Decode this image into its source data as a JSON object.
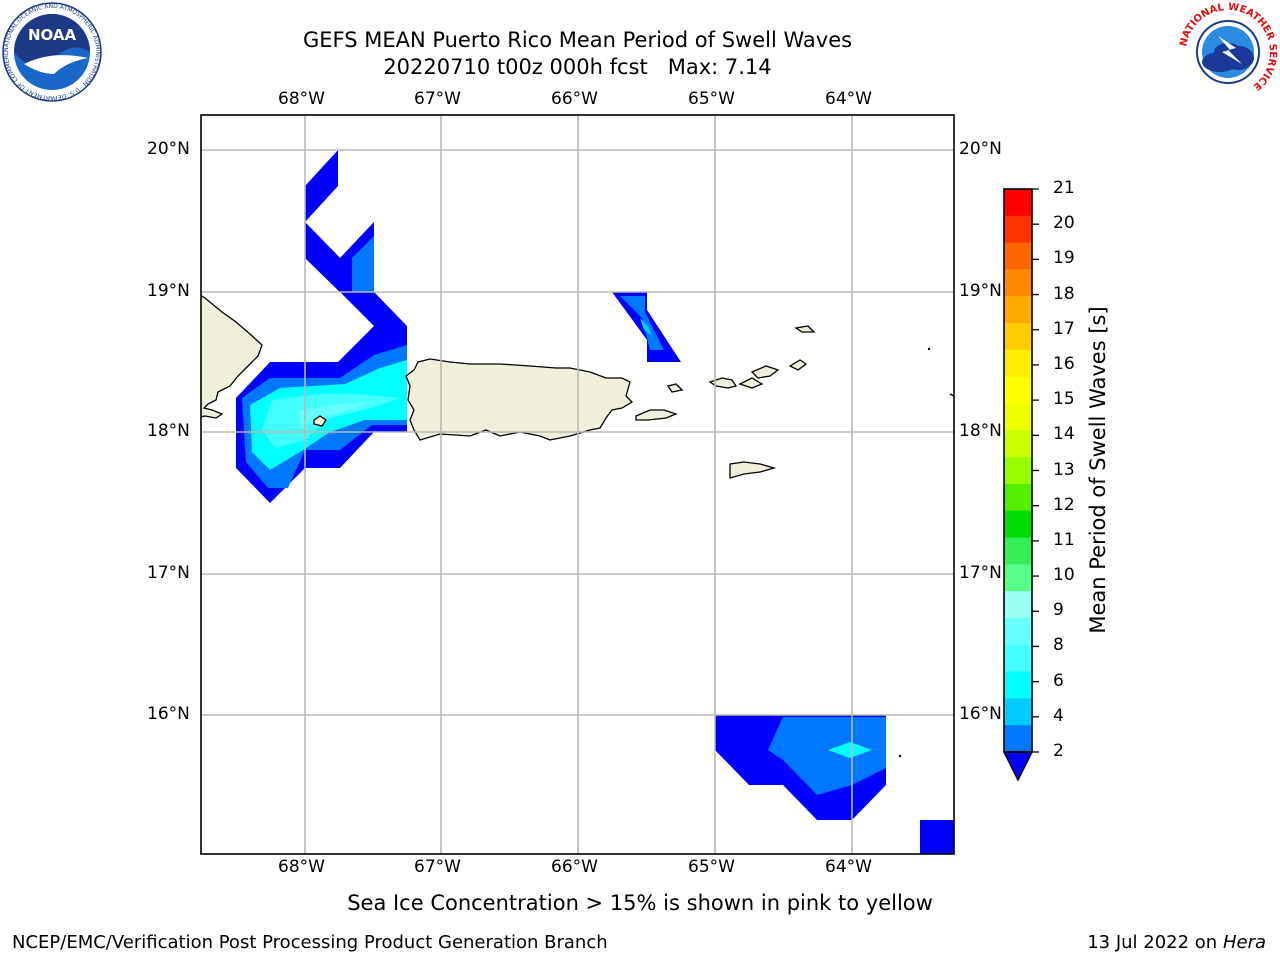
{
  "header": {
    "title_line1": "GEFS MEAN Puerto Rico Mean Period of Swell Waves",
    "title_line2": "20220710 t00z 000h fcst   Max: 7.14"
  },
  "logos": {
    "left": {
      "name": "noaa-logo",
      "text": "NOAA",
      "ring_text": "NATIONAL OCEANIC AND ATMOSPHERIC ADMINISTRATION · U.S. DEPARTMENT OF COMMERCE"
    },
    "right": {
      "name": "nws-logo",
      "ring_text": "NATIONAL WEATHER SERVICE"
    }
  },
  "map": {
    "lon_range": [
      -68.77,
      -63.27
    ],
    "lat_range": [
      15.0,
      20.25
    ],
    "lon_ticks": [
      "68°W",
      "67°W",
      "66°W",
      "65°W",
      "64°W"
    ],
    "lat_ticks": [
      "20°N",
      "19°N",
      "18°N",
      "17°N",
      "16°N"
    ],
    "grid": true,
    "land_color": "#efefdc",
    "max_value": 7.14
  },
  "colorbar": {
    "label": "Mean Period of Swell Waves [s]",
    "ticks": [
      "21",
      "20",
      "19",
      "18",
      "17",
      "16",
      "15",
      "14",
      "13",
      "12",
      "11",
      "10",
      "9",
      "8",
      "6",
      "4",
      "2"
    ],
    "colors_top_to_bottom": [
      "#ff0000",
      "#ff3300",
      "#ff6600",
      "#ff8800",
      "#ffaa00",
      "#ffcc00",
      "#ffee00",
      "#ffff00",
      "#eeff00",
      "#ccff00",
      "#99ff00",
      "#55ee00",
      "#00dd00",
      "#33ee55",
      "#55ff88",
      "#99ffee",
      "#66ffff",
      "#44ffff",
      "#00ffff",
      "#00ccff",
      "#0077ff"
    ],
    "underflow_color": "#0000ff"
  },
  "footer": {
    "ice_note": "Sea Ice Concentration > 15% is shown in pink to yellow",
    "left": "NCEP/EMC/Verification Post Processing Product Generation Branch",
    "right_date": "13 Jul 2022 on ",
    "right_host": "Hera"
  }
}
